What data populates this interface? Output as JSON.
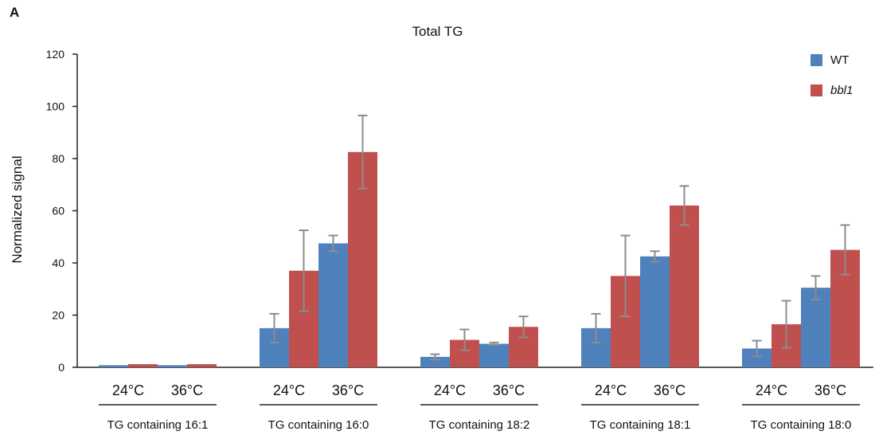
{
  "panel_label": "A",
  "chart_data": {
    "type": "bar",
    "title": "Total TG",
    "ylabel": "Normalized signal",
    "xlabel": "",
    "ylim": [
      0,
      120
    ],
    "yticks": [
      0,
      20,
      40,
      60,
      80,
      100,
      120
    ],
    "grid": false,
    "legend_position": "top-right",
    "categories": [
      {
        "group": "TG containing 16:1",
        "conditions": [
          "24°C",
          "36°C"
        ]
      },
      {
        "group": "TG containing 16:0",
        "conditions": [
          "24°C",
          "36°C"
        ]
      },
      {
        "group": "TG containing 18:2",
        "conditions": [
          "24°C",
          "36°C"
        ]
      },
      {
        "group": "TG containing 18:1",
        "conditions": [
          "24°C",
          "36°C"
        ]
      },
      {
        "group": "TG containing 18:0",
        "conditions": [
          "24°C",
          "36°C"
        ]
      }
    ],
    "series": [
      {
        "name": "WT",
        "color": "#4f81bd",
        "values": [
          [
            0.8,
            0.8
          ],
          [
            15,
            47.5
          ],
          [
            4,
            9
          ],
          [
            15,
            42.5
          ],
          [
            7.2,
            30.5
          ]
        ],
        "errors": [
          [
            0,
            0
          ],
          [
            5.5,
            3
          ],
          [
            1,
            0.5
          ],
          [
            5.5,
            2
          ],
          [
            3,
            4.5
          ]
        ]
      },
      {
        "name": "bbl1",
        "color": "#c0504d",
        "values": [
          [
            1.2,
            1.2
          ],
          [
            37,
            82.5
          ],
          [
            10.5,
            15.5
          ],
          [
            35,
            62
          ],
          [
            16.5,
            45
          ]
        ],
        "errors": [
          [
            0,
            0
          ],
          [
            15.5,
            14
          ],
          [
            4,
            4
          ],
          [
            15.5,
            7.5
          ],
          [
            9,
            9.5
          ]
        ]
      }
    ],
    "error_bar_color": "#8c8c8c"
  }
}
